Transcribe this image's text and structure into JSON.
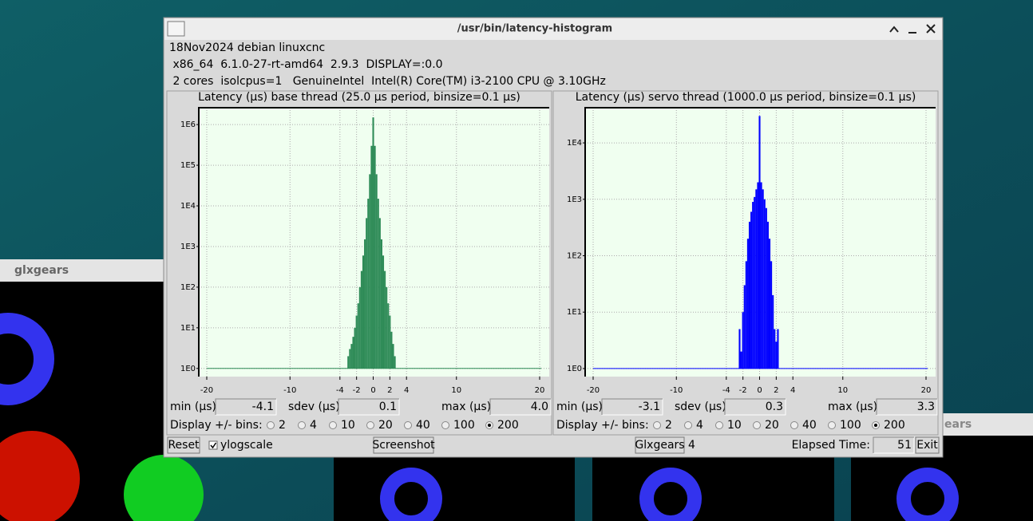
{
  "desktop": {
    "windows": [
      "glxgears",
      "ears"
    ]
  },
  "window": {
    "title": "/usr/bin/latency-histogram"
  },
  "info": [
    "18Nov2024 debian linuxcnc",
    " x86_64  6.1.0-27-rt-amd64  2.9.3  DISPLAY=:0.0",
    " 2 cores  isolcpus=1   GenuineIntel  Intel(R) Core(TM) i3-2100 CPU @ 3.10GHz"
  ],
  "chart_data": [
    {
      "type": "histogram",
      "title": "Latency (µs) base thread (25.0 µs period, binsize=0.1 µs)",
      "color": "#2e8b57",
      "bins": [
        -4.1,
        -3.9,
        -3.7,
        -3.5,
        -3.3,
        -3.1,
        -2.9,
        -2.7,
        -2.5,
        -2.3,
        -2.1,
        -1.9,
        -1.7,
        -1.5,
        -1.3,
        -1.1,
        -0.9,
        -0.7,
        -0.5,
        -0.3,
        -0.1,
        0.1,
        0.3,
        0.5,
        0.7,
        0.9,
        1.1,
        1.3,
        1.5,
        1.7,
        1.9,
        2.1,
        2.3,
        2.5,
        2.7,
        2.9,
        3.1,
        3.3,
        3.5,
        3.7,
        3.9,
        4.1
      ],
      "values": [
        1,
        0,
        0,
        0,
        1,
        2,
        3,
        4,
        6,
        10,
        20,
        40,
        100,
        250,
        600,
        1500,
        5000,
        15000,
        60000,
        300000,
        1500000,
        300000,
        60000,
        15000,
        5000,
        1500,
        600,
        250,
        100,
        40,
        20,
        8,
        4,
        2,
        0,
        0,
        1,
        1,
        1,
        0,
        1
      ],
      "xlim": [
        -20.96,
        21.15
      ],
      "xticks": [
        -20,
        -10,
        -4,
        -2,
        0,
        2,
        4,
        10,
        20
      ],
      "ylim": [
        0.63,
        2600000
      ],
      "log_scale": true,
      "grid": true,
      "yticks": [
        {
          "value": 1,
          "label": "1E0"
        },
        {
          "value": 10,
          "label": "1E1"
        },
        {
          "value": 100,
          "label": "1E2"
        },
        {
          "value": 1000,
          "label": "1E3"
        },
        {
          "value": 10000,
          "label": "1E4"
        },
        {
          "value": 100000,
          "label": "1E5"
        },
        {
          "value": 1000000,
          "label": "1E6"
        }
      ]
    },
    {
      "type": "histogram",
      "title": "Latency (µs) servo thread (1000.0 µs period, binsize=0.1 µs)",
      "color": "#0000ff",
      "bins": [
        -4.1,
        -3.9,
        -3.7,
        -3.5,
        -3.3,
        -3.1,
        -2.9,
        -2.7,
        -2.5,
        -2.3,
        -2.1,
        -1.9,
        -1.7,
        -1.5,
        -1.3,
        -1.1,
        -0.9,
        -0.7,
        -0.5,
        -0.3,
        -0.1,
        0.1,
        0.3,
        0.5,
        0.7,
        0.9,
        1.1,
        1.3,
        1.5,
        1.7,
        1.9,
        2.1,
        2.3,
        2.5,
        2.7,
        2.9,
        3.1,
        3.3,
        3.5,
        3.7,
        3.9,
        4.1
      ],
      "values": [
        0,
        0,
        0,
        0,
        1,
        0,
        0,
        0,
        5,
        2,
        10,
        30,
        80,
        200,
        400,
        600,
        900,
        1100,
        1500,
        2000,
        30000,
        2000,
        1500,
        1000,
        700,
        400,
        200,
        80,
        20,
        5,
        3,
        5,
        0,
        0,
        0,
        0,
        1,
        0,
        0,
        0,
        0
      ],
      "xlim": [
        -20.96,
        21.15
      ],
      "xticks": [
        -20,
        -10,
        -4,
        -2,
        0,
        2,
        4,
        10,
        20
      ],
      "ylim": [
        0.72,
        42000
      ],
      "log_scale": true,
      "grid": true,
      "yticks": [
        {
          "value": 1,
          "label": "1E0"
        },
        {
          "value": 10,
          "label": "1E1"
        },
        {
          "value": 100,
          "label": "1E2"
        },
        {
          "value": 1000,
          "label": "1E3"
        },
        {
          "value": 10000,
          "label": "1E4"
        }
      ]
    }
  ],
  "panels": [
    {
      "stats": [
        {
          "label": "min (µs)",
          "value": "-4.1"
        },
        {
          "label": "sdev (µs)",
          "value": "0.1"
        },
        {
          "label": "max (µs)",
          "value": "4.0"
        }
      ],
      "bins_label": "Display +/- bins:",
      "bins_options": [
        "2",
        "4",
        "10",
        "20",
        "40",
        "100",
        "200"
      ],
      "selected_bins": "200"
    },
    {
      "stats": [
        {
          "label": "min (µs)",
          "value": "-3.1"
        },
        {
          "label": "sdev (µs)",
          "value": "0.3"
        },
        {
          "label": "max (µs)",
          "value": "3.3"
        }
      ],
      "bins_label": "Display +/- bins:",
      "bins_options": [
        "2",
        "4",
        "10",
        "20",
        "40",
        "100",
        "200"
      ],
      "selected_bins": "200"
    }
  ],
  "footer": {
    "reset": "Reset",
    "ylogscale": "ylogscale",
    "ylogscale_checked": true,
    "screenshot": "Screenshot",
    "glxgears": "Glxgears",
    "glxgears_count": "4",
    "elapsed_label": "Elapsed Time:",
    "elapsed": "51",
    "exit": "Exit"
  }
}
